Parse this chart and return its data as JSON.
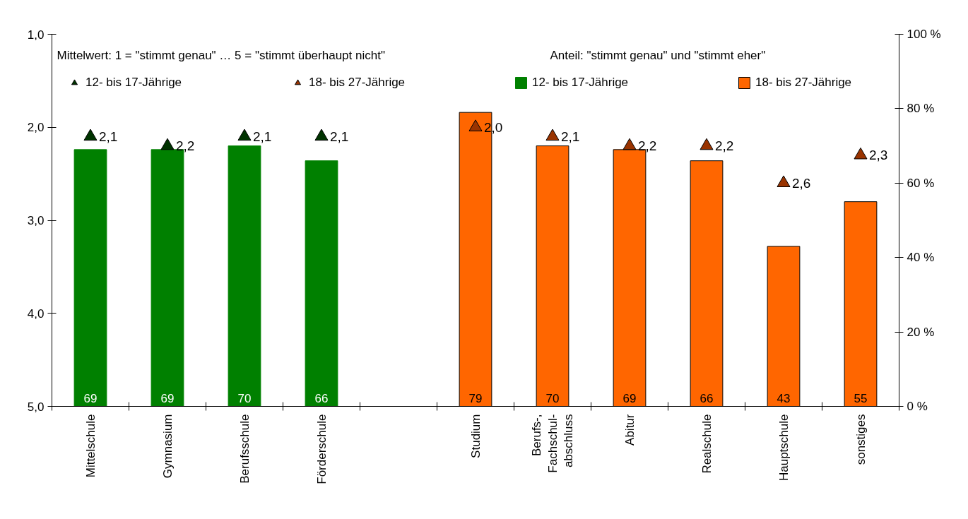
{
  "chart_data": {
    "type": "bar",
    "categories": [
      "Mittelschule",
      "Gymnasium",
      "Berufsschule",
      "Förderschule",
      null,
      "Studium",
      "Berufs-,\nFachschul-\nabschluss",
      "Abitur",
      "Realschule",
      "Hauptschule",
      "sonstiges"
    ],
    "series": [
      {
        "name": "12- bis 17-Jährige",
        "type": "scatter",
        "marker": "triangle",
        "color": "#003300",
        "values": [
          2.1,
          2.2,
          2.1,
          2.1,
          null,
          null,
          null,
          null,
          null,
          null,
          null
        ],
        "value_labels": [
          "2,1",
          "2,2",
          "2,1",
          "2,1",
          null,
          null,
          null,
          null,
          null,
          null,
          null
        ]
      },
      {
        "name": "18- bis 27-Jährige",
        "type": "scatter",
        "marker": "triangle",
        "color": "#993300",
        "values": [
          null,
          null,
          null,
          null,
          null,
          2.0,
          2.1,
          2.2,
          2.2,
          2.6,
          2.3
        ],
        "value_labels": [
          null,
          null,
          null,
          null,
          null,
          "2,0",
          "2,1",
          "2,2",
          "2,2",
          "2,6",
          "2,3"
        ]
      },
      {
        "name": "12- bis 17-Jährige",
        "axis": "y2",
        "color": "#008000",
        "values": [
          69,
          69,
          70,
          66,
          null,
          null,
          null,
          null,
          null,
          null,
          null
        ],
        "value_labels": [
          "69",
          "69",
          "70",
          "66",
          null,
          null,
          null,
          null,
          null,
          null,
          null
        ]
      },
      {
        "name": "18- bis 27-Jährige",
        "axis": "y2",
        "color": "#ff6600",
        "values": [
          null,
          null,
          null,
          null,
          null,
          79,
          70,
          69,
          66,
          43,
          55
        ],
        "value_labels": [
          null,
          null,
          null,
          null,
          null,
          "79",
          "70",
          "69",
          "66",
          "43",
          "55"
        ]
      }
    ],
    "ylim": [
      5,
      1
    ],
    "yticks": [
      {
        "value": 1,
        "label": "1,0"
      },
      {
        "value": 2,
        "label": "2,0"
      },
      {
        "value": 3,
        "label": "3,0"
      },
      {
        "value": 4,
        "label": "4,0"
      },
      {
        "value": 5,
        "label": "5,0"
      }
    ],
    "y2lim": [
      0,
      100
    ],
    "y2ticks": [
      {
        "value": 0,
        "label": "0 %"
      },
      {
        "value": 20,
        "label": "20 %"
      },
      {
        "value": 40,
        "label": "40 %"
      },
      {
        "value": 60,
        "label": "60 %"
      },
      {
        "value": 80,
        "label": "80 %"
      },
      {
        "value": 100,
        "label": "100 %"
      }
    ],
    "annotations": [
      "Mittelwert: 1 = \"stimmt genau\" … 5 = \"stimmt überhaupt nicht\"",
      "Anteil: \"stimmt genau\" und \"stimmt eher\""
    ],
    "legend": "top",
    "grid": false
  }
}
